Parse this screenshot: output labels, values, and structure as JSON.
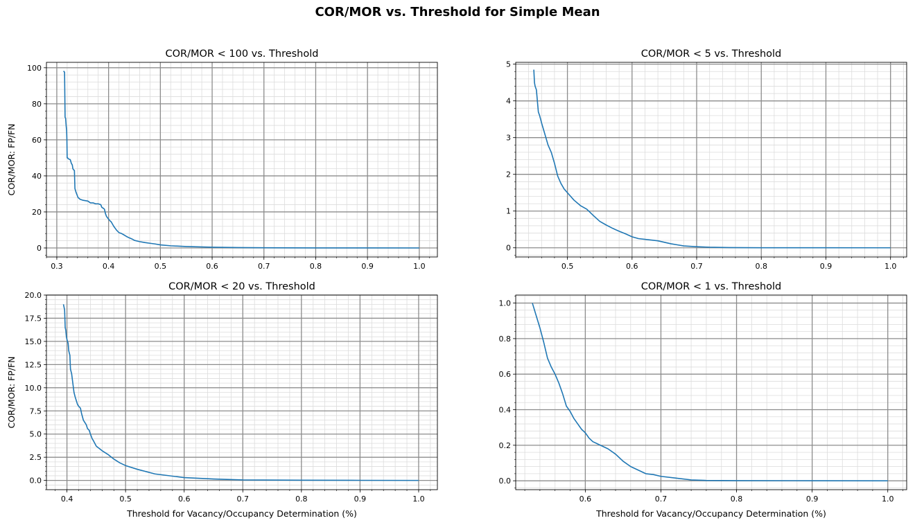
{
  "figure": {
    "title": "COR/MOR vs. Threshold for Simple Mean"
  },
  "colors": {
    "line": "#1f77b4",
    "major_grid": "#8c8c8c",
    "minor_grid": "#dcdcdc",
    "axis": "#000000"
  },
  "chart_data": [
    {
      "type": "line",
      "title": "COR/MOR < 100 vs. Threshold",
      "xlabel": "",
      "ylabel": "COR/MOR: FP/FN",
      "xlim": [
        0.28,
        1.035
      ],
      "ylim": [
        -5,
        103
      ],
      "xticks": [
        0.3,
        0.4,
        0.5,
        0.6,
        0.7,
        0.8,
        0.9,
        1.0
      ],
      "xtick_labels": [
        "0.3",
        "0.4",
        "0.5",
        "0.6",
        "0.7",
        "0.8",
        "0.9",
        "1.0"
      ],
      "yticks": [
        0,
        20,
        40,
        60,
        80,
        100
      ],
      "ytick_labels": [
        "0",
        "20",
        "40",
        "60",
        "80",
        "100"
      ],
      "x_minor": 0.02,
      "y_minor": 4,
      "grid": true,
      "series": [
        {
          "x": [
            0.313,
            0.315,
            0.316,
            0.317,
            0.318,
            0.319,
            0.3195,
            0.32,
            0.321,
            0.322,
            0.326,
            0.328,
            0.33,
            0.331,
            0.332,
            0.334,
            0.335,
            0.336,
            0.337,
            0.339,
            0.341,
            0.345,
            0.35,
            0.36,
            0.365,
            0.37,
            0.375,
            0.38,
            0.385,
            0.387,
            0.39,
            0.392,
            0.394,
            0.396,
            0.4,
            0.403,
            0.405,
            0.41,
            0.415,
            0.42,
            0.425,
            0.43,
            0.435,
            0.44,
            0.445,
            0.45,
            0.46,
            0.47,
            0.48,
            0.49,
            0.5,
            0.52,
            0.55,
            0.6,
            0.65,
            0.7,
            0.75,
            0.8,
            0.9,
            1.0
          ],
          "y": [
            98.2,
            97.5,
            72.5,
            72,
            68,
            65,
            60,
            50,
            50,
            49.5,
            49,
            47,
            46,
            44,
            43.5,
            43,
            33,
            32,
            31,
            29.5,
            28,
            27,
            26.5,
            26,
            25,
            25,
            24.5,
            24.5,
            24,
            22.5,
            22,
            21.5,
            19,
            17.5,
            16,
            15,
            14.5,
            12,
            10,
            8.5,
            8,
            7.2,
            6.3,
            5.6,
            5,
            4.2,
            3.5,
            3,
            2.6,
            2.2,
            1.7,
            1.2,
            0.8,
            0.4,
            0.2,
            0.1,
            0.05,
            0.02,
            0.01,
            0.0
          ]
        }
      ]
    },
    {
      "type": "line",
      "title": "COR/MOR < 5 vs. Threshold",
      "xlabel": "",
      "ylabel": "",
      "xlim": [
        0.42,
        1.025
      ],
      "ylim": [
        -0.25,
        5.05
      ],
      "xticks": [
        0.5,
        0.6,
        0.7,
        0.8,
        0.9,
        1.0
      ],
      "xtick_labels": [
        "0.5",
        "0.6",
        "0.7",
        "0.8",
        "0.9",
        "1.0"
      ],
      "yticks": [
        0,
        1,
        2,
        3,
        4,
        5
      ],
      "ytick_labels": [
        "0",
        "1",
        "2",
        "3",
        "4",
        "5"
      ],
      "x_minor": 0.02,
      "y_minor": 0.2,
      "grid": true,
      "series": [
        {
          "x": [
            0.448,
            0.449,
            0.45,
            0.452,
            0.455,
            0.457,
            0.46,
            0.465,
            0.47,
            0.475,
            0.48,
            0.485,
            0.49,
            0.495,
            0.5,
            0.505,
            0.51,
            0.52,
            0.53,
            0.54,
            0.55,
            0.56,
            0.57,
            0.58,
            0.59,
            0.6,
            0.61,
            0.62,
            0.64,
            0.65,
            0.66,
            0.67,
            0.68,
            0.7,
            0.72,
            0.75,
            0.8,
            0.9,
            1.0
          ],
          "y": [
            4.85,
            4.5,
            4.4,
            4.3,
            3.7,
            3.6,
            3.4,
            3.1,
            2.8,
            2.6,
            2.3,
            1.95,
            1.75,
            1.6,
            1.5,
            1.4,
            1.3,
            1.15,
            1.05,
            0.88,
            0.72,
            0.62,
            0.53,
            0.45,
            0.38,
            0.3,
            0.25,
            0.23,
            0.19,
            0.15,
            0.11,
            0.08,
            0.05,
            0.03,
            0.015,
            0.005,
            0.002,
            0.001,
            0.0
          ]
        }
      ]
    },
    {
      "type": "line",
      "title": "COR/MOR < 20 vs. Threshold",
      "xlabel": "Threshold for Vacancy/Occupancy Determination (%)",
      "ylabel": "COR/MOR: FP/FN",
      "xlim": [
        0.365,
        1.032
      ],
      "ylim": [
        -1.0,
        20.0
      ],
      "xticks": [
        0.4,
        0.5,
        0.6,
        0.7,
        0.8,
        0.9,
        1.0
      ],
      "xtick_labels": [
        "0.4",
        "0.5",
        "0.6",
        "0.7",
        "0.8",
        "0.9",
        "1.0"
      ],
      "yticks": [
        0,
        2.5,
        5,
        7.5,
        10,
        12.5,
        15,
        17.5,
        20
      ],
      "ytick_labels": [
        "0.0",
        "2.5",
        "5.0",
        "7.5",
        "10.0",
        "12.5",
        "15.0",
        "17.5",
        "20.0"
      ],
      "x_minor": 0.02,
      "y_minor": 0.5,
      "grid": true,
      "series": [
        {
          "x": [
            0.394,
            0.396,
            0.397,
            0.398,
            0.399,
            0.4,
            0.402,
            0.403,
            0.405,
            0.406,
            0.408,
            0.41,
            0.412,
            0.414,
            0.415,
            0.418,
            0.42,
            0.423,
            0.425,
            0.428,
            0.43,
            0.433,
            0.435,
            0.438,
            0.44,
            0.443,
            0.445,
            0.45,
            0.46,
            0.47,
            0.48,
            0.49,
            0.5,
            0.52,
            0.55,
            0.6,
            0.65,
            0.7,
            0.8,
            0.9,
            1.0
          ],
          "y": [
            19.0,
            18.4,
            16.5,
            16.2,
            15.5,
            15.2,
            14.8,
            14.0,
            13.5,
            12.0,
            11.5,
            10.5,
            9.5,
            9.0,
            8.8,
            8.2,
            8.0,
            7.8,
            7.2,
            6.5,
            6.3,
            6.0,
            5.6,
            5.4,
            5.0,
            4.5,
            4.3,
            3.7,
            3.2,
            2.8,
            2.3,
            1.9,
            1.6,
            1.2,
            0.7,
            0.3,
            0.15,
            0.05,
            0.02,
            0.01,
            0.0
          ]
        }
      ]
    },
    {
      "type": "line",
      "title": "COR/MOR < 1 vs. Threshold",
      "xlabel": "Threshold for Vacancy/Occupancy Determination (%)",
      "ylabel": "",
      "xlim": [
        0.508,
        1.025
      ],
      "ylim": [
        -0.05,
        1.045
      ],
      "xticks": [
        0.6,
        0.7,
        0.8,
        0.9,
        1.0
      ],
      "xtick_labels": [
        "0.6",
        "0.7",
        "0.8",
        "0.9",
        "1.0"
      ],
      "yticks": [
        0,
        0.2,
        0.4,
        0.6,
        0.8,
        1.0
      ],
      "ytick_labels": [
        "0.0",
        "0.2",
        "0.4",
        "0.6",
        "0.8",
        "1.0"
      ],
      "x_minor": 0.02,
      "y_minor": 0.04,
      "grid": true,
      "series": [
        {
          "x": [
            0.53,
            0.535,
            0.54,
            0.545,
            0.55,
            0.555,
            0.56,
            0.565,
            0.57,
            0.575,
            0.58,
            0.585,
            0.59,
            0.595,
            0.6,
            0.605,
            0.61,
            0.615,
            0.62,
            0.63,
            0.64,
            0.65,
            0.66,
            0.67,
            0.68,
            0.69,
            0.7,
            0.72,
            0.74,
            0.76,
            0.8,
            0.9,
            1.0
          ],
          "y": [
            1.0,
            0.93,
            0.86,
            0.78,
            0.69,
            0.64,
            0.6,
            0.55,
            0.49,
            0.42,
            0.39,
            0.35,
            0.32,
            0.29,
            0.27,
            0.24,
            0.22,
            0.21,
            0.2,
            0.18,
            0.15,
            0.11,
            0.08,
            0.06,
            0.04,
            0.035,
            0.025,
            0.015,
            0.005,
            0.002,
            0.001,
            0.0005,
            0.0
          ]
        }
      ]
    }
  ]
}
